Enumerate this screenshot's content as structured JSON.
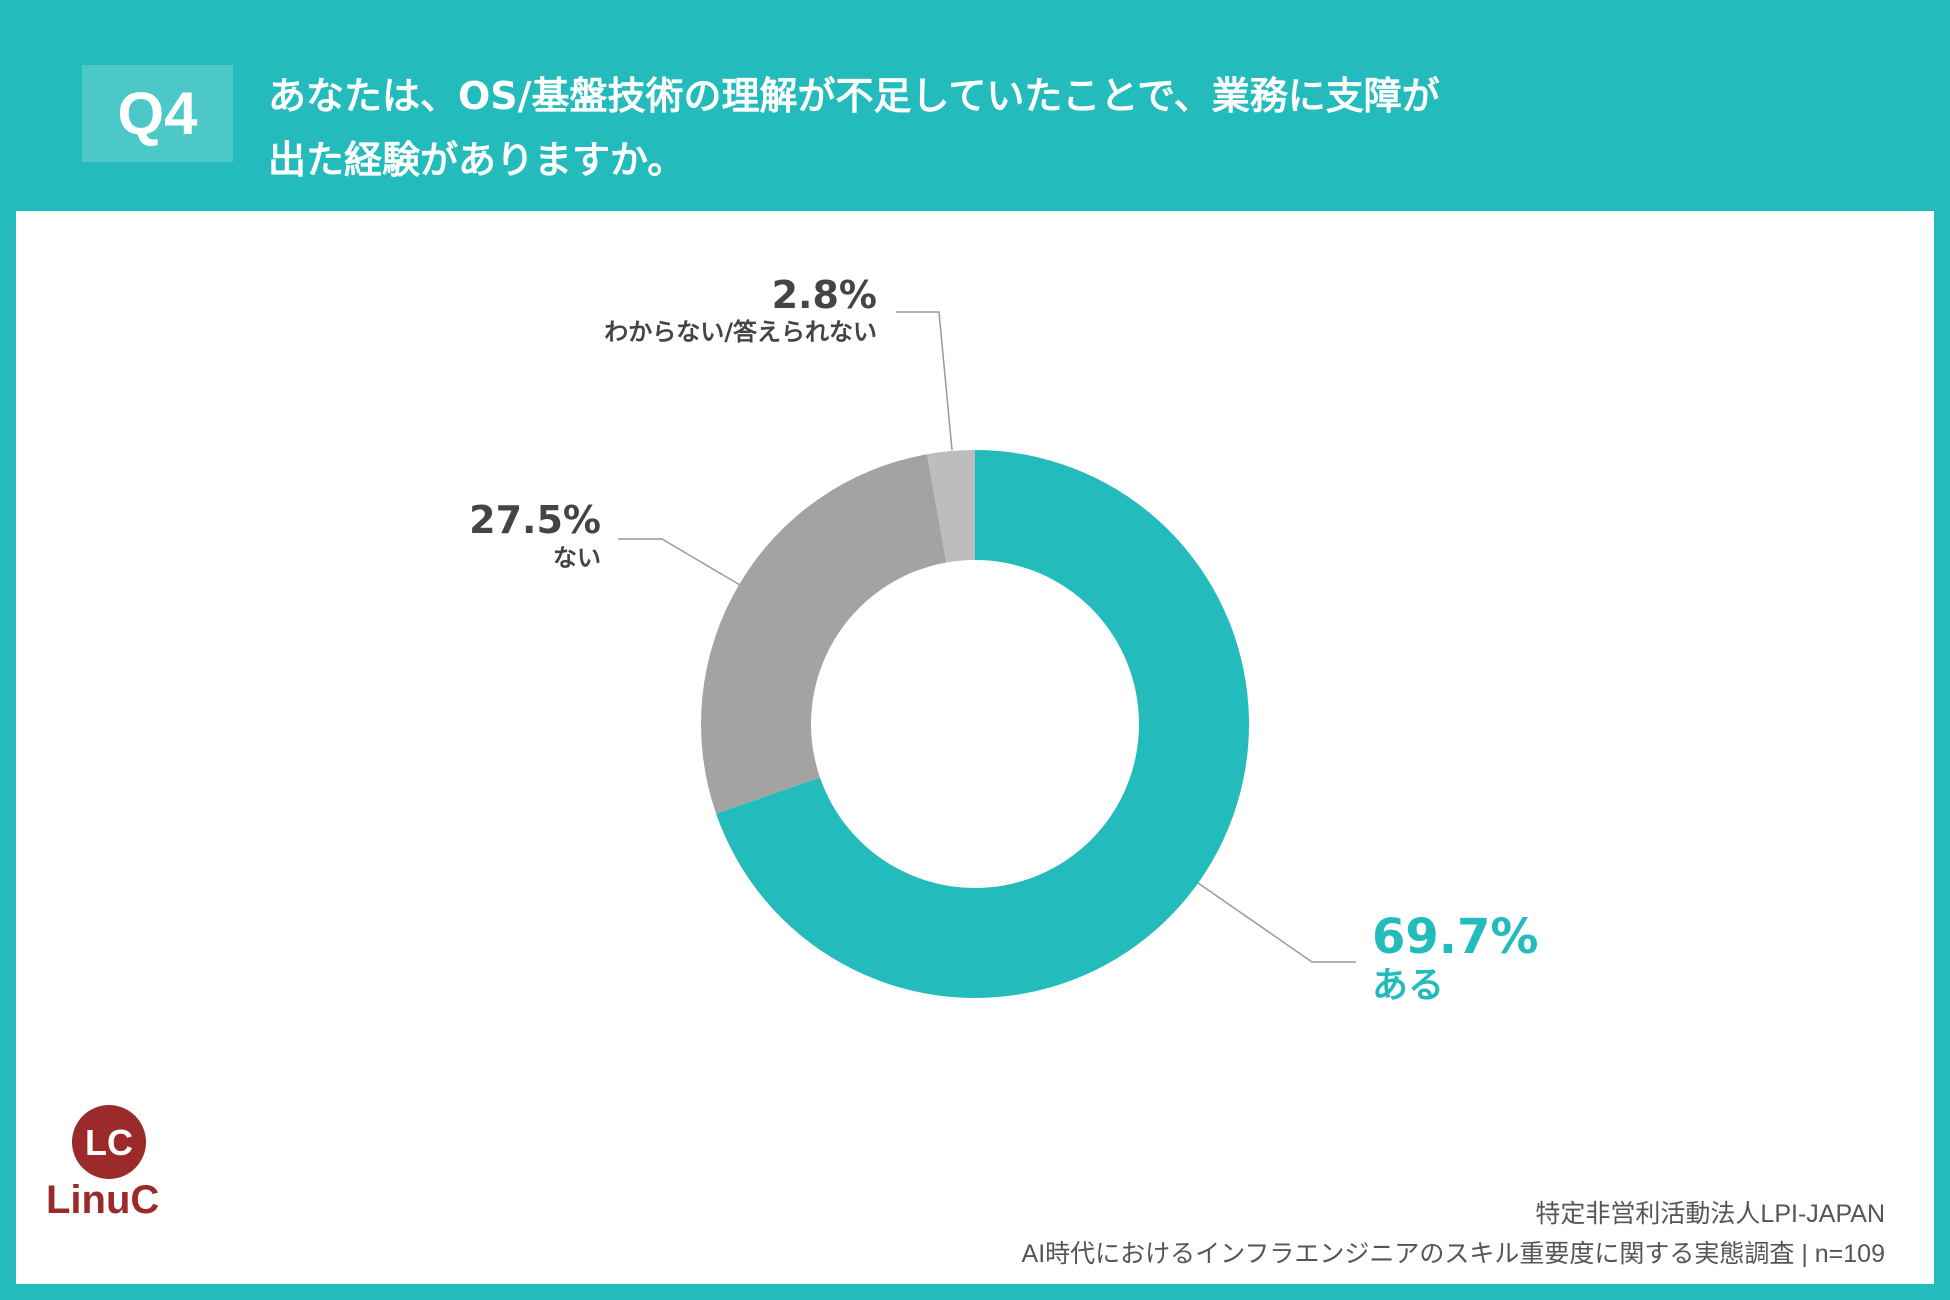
{
  "header": {
    "badge": "Q4",
    "title_line1": "あなたは、OS/基盤技術の理解が不足していたことで、業務に支障が",
    "title_line2": "出た経験がありますか。"
  },
  "colors": {
    "background": "#23BBBB",
    "badge": "#4CC8C8",
    "logo": "#9B2A2A"
  },
  "chart_data": {
    "type": "pie",
    "style": "donut",
    "start": "top, clockwise",
    "slices": [
      {
        "label": "ある",
        "value": 69.7,
        "display": "69.7%",
        "color": "#23BBBB"
      },
      {
        "label": "ない",
        "value": 27.5,
        "display": "27.5%",
        "color": "#A3A3A3"
      },
      {
        "label": "わからない/答えられない",
        "value": 2.8,
        "display": "2.8%",
        "color": "#BDBDBD"
      }
    ]
  },
  "logo": {
    "text": "LinuC",
    "mark": "LC"
  },
  "footer": {
    "org": "特定非営利活動法人LPI-JAPAN",
    "survey": "AI時代におけるインフラエンジニアのスキル重要度に関する実態調査 | n=109"
  }
}
